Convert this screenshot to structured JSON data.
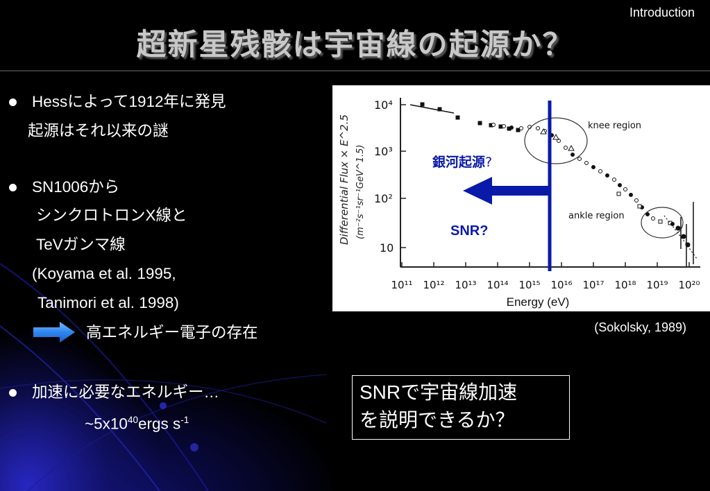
{
  "header": {
    "section_label": "Introduction",
    "title": "超新星残骸は宇宙線の起源か？"
  },
  "bullets": {
    "b1_line1": "Hessによって1912年に発見",
    "b1_line2": "起源はそれ以来の謎",
    "b2_line1": "SN1006から",
    "b2_line2": "シンクロトロンX線と",
    "b2_line3": "TeVガンマ線",
    "b2_line4": "(Koyama et al. 1995,",
    "b2_line5": "Tanimori et al. 1998)",
    "b2_result": "高エネルギー電子の存在",
    "b3_line1": "加速に必要なエネルギー…",
    "b3_energy_prefix": "~5x10",
    "b3_energy_exp": "40",
    "b3_energy_unit": "ergs s",
    "b3_energy_unit_exp": "-1"
  },
  "figure": {
    "ylabel": "Differential Flux × E^2.5",
    "yunit": "(m⁻²s⁻¹sr⁻¹GeV^1.5)",
    "xlabel": "Energy (eV)",
    "y_ticks": [
      "10⁴",
      "10³",
      "10²",
      "10"
    ],
    "x_ticks": [
      "10¹¹",
      "10¹²",
      "10¹³",
      "10¹⁴",
      "10¹⁵",
      "10¹⁶",
      "10¹⁷",
      "10¹⁸",
      "10¹⁹",
      "10²⁰"
    ],
    "knee_label": "knee region",
    "ankle_label": "ankle region",
    "galactic_label": "銀河起源",
    "galactic_qmark": "?",
    "snr_label": "SNR?",
    "divider_color": "#0a1aa8",
    "arrow_color": "#0a1aa8"
  },
  "source_citation": "(Sokolsky, 1989)",
  "question": {
    "line1": "SNRで宇宙線加速",
    "line2": "を説明できるか？"
  }
}
